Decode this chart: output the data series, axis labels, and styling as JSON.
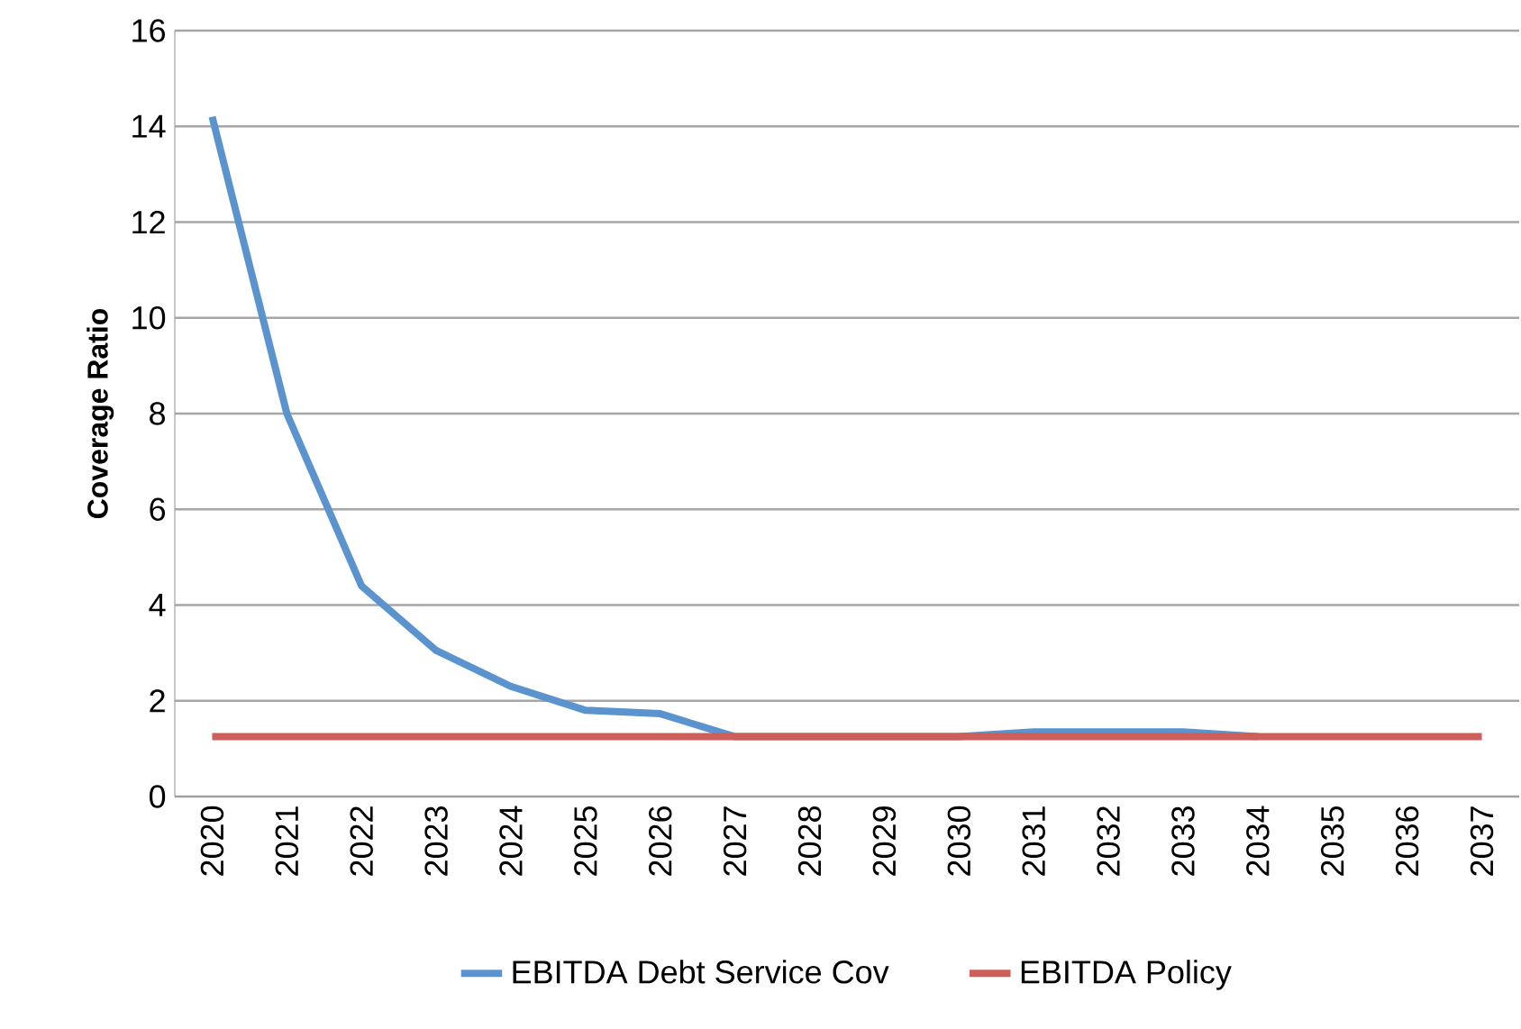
{
  "chart_data": {
    "type": "line",
    "ylabel": "Coverage Ratio",
    "categories": [
      "2020",
      "2021",
      "2022",
      "2023",
      "2024",
      "2025",
      "2026",
      "2027",
      "2028",
      "2029",
      "2030",
      "2031",
      "2032",
      "2033",
      "2034",
      "2035",
      "2036",
      "2037"
    ],
    "series": [
      {
        "name": "EBITDA Debt Service Cov",
        "color": "#5b93cf",
        "values": [
          14.2,
          8.0,
          4.4,
          3.05,
          2.3,
          1.8,
          1.73,
          1.25,
          null,
          null,
          1.25,
          1.35,
          1.35,
          1.35,
          1.25,
          null,
          null,
          null
        ]
      },
      {
        "name": "EBITDA Policy",
        "color": "#cc5f5a",
        "values": [
          1.25,
          1.25,
          1.25,
          1.25,
          1.25,
          1.25,
          1.25,
          1.25,
          1.25,
          1.25,
          1.25,
          1.25,
          1.25,
          1.25,
          1.25,
          1.25,
          1.25,
          1.25
        ]
      }
    ],
    "ylim": [
      0,
      16
    ],
    "yticks": [
      0,
      2,
      4,
      6,
      8,
      10,
      12,
      14,
      16
    ],
    "grid": "y",
    "legend": "bottom",
    "marker": "none",
    "line_style": "solid"
  }
}
